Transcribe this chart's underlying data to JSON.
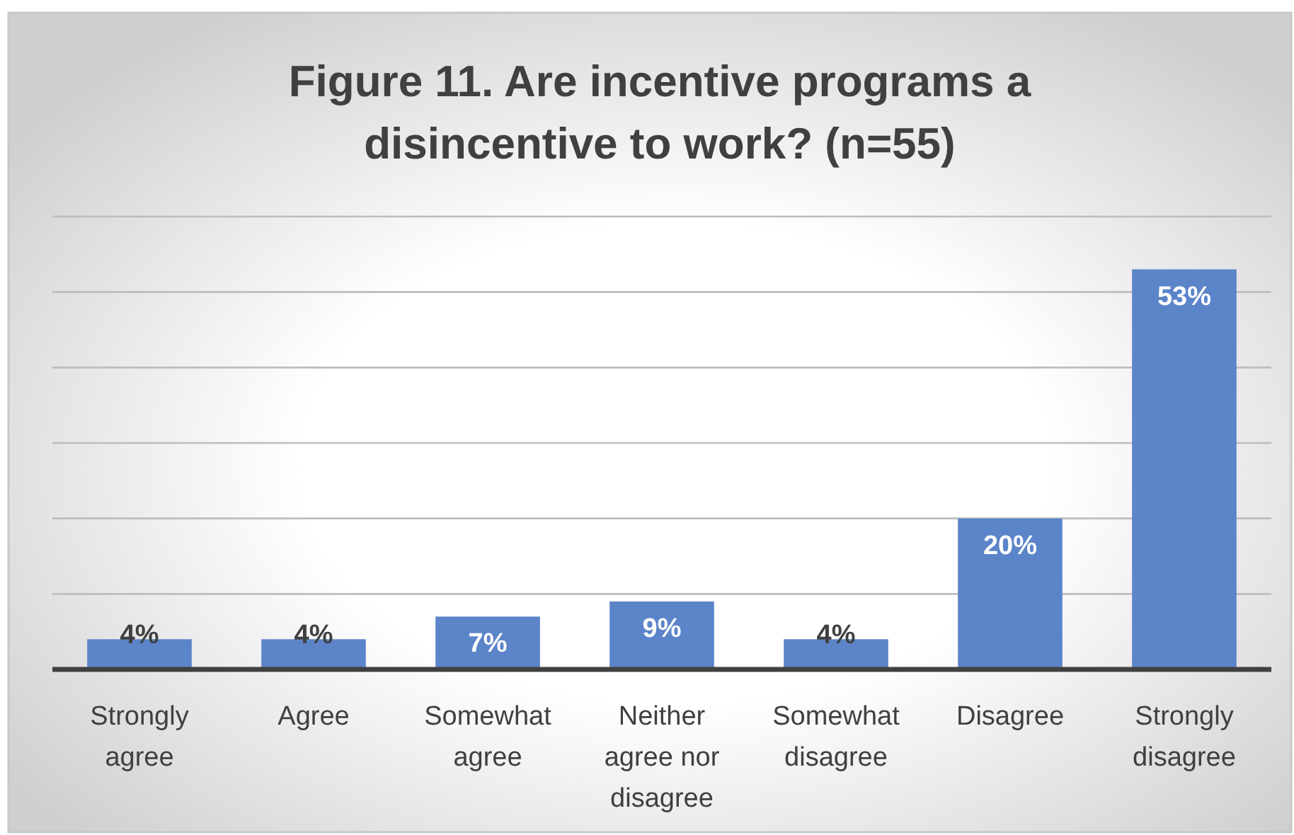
{
  "chart_data": {
    "type": "bar",
    "title": "Figure 11. Are incentive programs a disincentive to work? (n=55)",
    "categories": [
      "Strongly agree",
      "Agree",
      "Somewhat agree",
      "Neither agree nor disagree",
      "Somewhat disagree",
      "Disagree",
      "Strongly disagree"
    ],
    "values": [
      4,
      4,
      7,
      9,
      4,
      20,
      53
    ],
    "color": "#5b84c9",
    "value_labels": [
      "4%",
      "4%",
      "7%",
      "9%",
      "4%",
      "20%",
      "53%"
    ],
    "ylim": [
      0,
      60
    ],
    "yticks": [
      {
        "value": 0,
        "label": null
      },
      {
        "value": 10,
        "label": null
      },
      {
        "value": 20,
        "label": null
      },
      {
        "value": 30,
        "label": null
      },
      {
        "value": 40,
        "label": null
      },
      {
        "value": 50,
        "label": null
      },
      {
        "value": 60,
        "label": null
      }
    ],
    "grid": "y",
    "tick_labels": "x"
  }
}
